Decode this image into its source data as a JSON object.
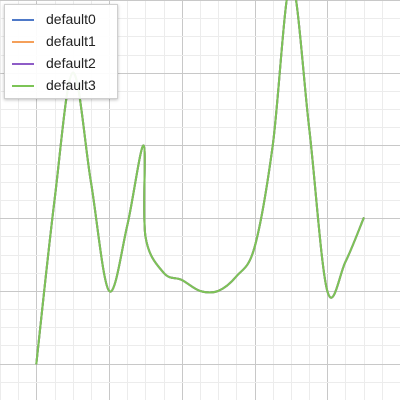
{
  "chart_data": {
    "type": "line",
    "title": "",
    "xlabel": "",
    "ylabel": "",
    "xlim": [
      -1,
      10
    ],
    "ylim": [
      -1,
      10
    ],
    "grid": true,
    "legend": "top-left",
    "series": [
      {
        "name": "default0",
        "color": "#4e79c8",
        "x": [
          0,
          0.5,
          1,
          1.5,
          2,
          2.5,
          2.95,
          3,
          3.5,
          4,
          4.5,
          5,
          5.5,
          6,
          6.5,
          7,
          7.5,
          8,
          8.5,
          9
        ],
        "y": [
          0,
          4.5,
          8,
          5,
          2,
          3.8,
          6,
          3.5,
          2.5,
          2.3,
          2,
          2,
          2.4,
          3.2,
          6,
          10.5,
          6.5,
          2,
          2.8,
          4
        ]
      },
      {
        "name": "default1",
        "color": "#f5a05a",
        "x": [
          0,
          0.5,
          1,
          1.5,
          2,
          2.5,
          2.95,
          3,
          3.5,
          4,
          4.5,
          5,
          5.5,
          6,
          6.5,
          7,
          7.5,
          8,
          8.5,
          9
        ],
        "y": [
          0,
          4.5,
          8,
          5,
          2,
          3.8,
          6,
          3.5,
          2.5,
          2.3,
          2,
          2,
          2.4,
          3.2,
          6,
          10.5,
          6.5,
          2,
          2.8,
          4
        ]
      },
      {
        "name": "default2",
        "color": "#8e5cc7",
        "x": [
          0,
          0.5,
          1,
          1.5,
          2,
          2.5,
          2.95,
          3,
          3.5,
          4,
          4.5,
          5,
          5.5,
          6,
          6.5,
          7,
          7.5,
          8,
          8.5,
          9
        ],
        "y": [
          0,
          4.5,
          8,
          5,
          2,
          3.8,
          6,
          3.5,
          2.5,
          2.3,
          2,
          2,
          2.4,
          3.2,
          6,
          10.5,
          6.5,
          2,
          2.8,
          4
        ]
      },
      {
        "name": "default3",
        "color": "#7cc456",
        "x": [
          0,
          0.5,
          1,
          1.5,
          2,
          2.5,
          2.95,
          3,
          3.5,
          4,
          4.5,
          5,
          5.5,
          6,
          6.5,
          7,
          7.5,
          8,
          8.5,
          9
        ],
        "y": [
          0,
          4.5,
          8,
          5,
          2,
          3.8,
          6,
          3.5,
          2.5,
          2.3,
          2,
          2,
          2.4,
          3.2,
          6,
          10.5,
          6.5,
          2,
          2.8,
          4
        ]
      }
    ]
  }
}
